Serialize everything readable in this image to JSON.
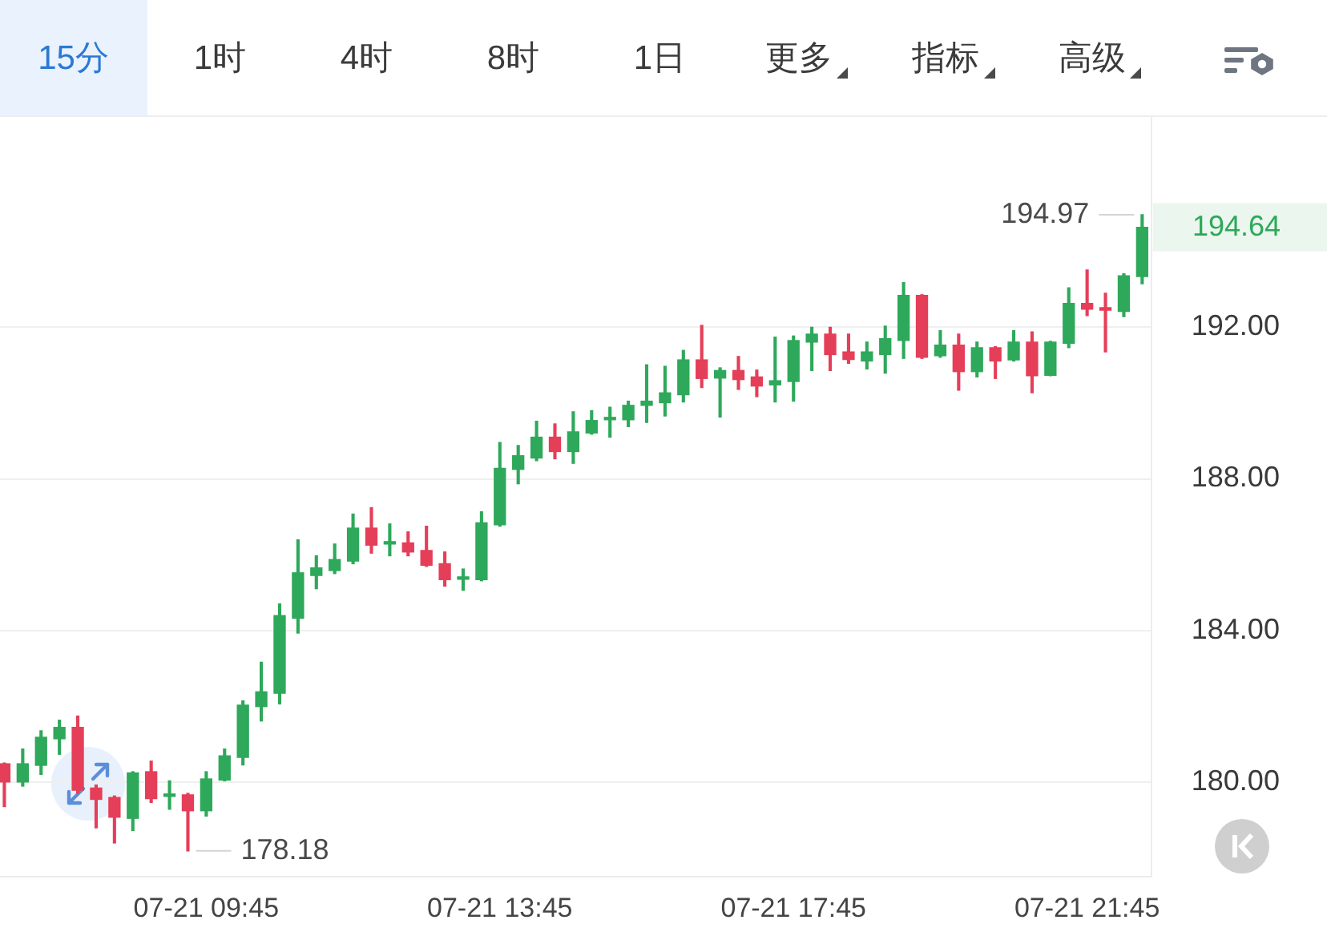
{
  "chart_data": {
    "type": "candlestick",
    "x": [
      "--07-21T07:00",
      "--07-21T07:15",
      "--07-21T07:30",
      "--07-21T07:45",
      "--07-21T08:00",
      "--07-21T08:15",
      "--07-21T08:30",
      "--07-21T08:45",
      "--07-21T09:00",
      "--07-21T09:15",
      "--07-21T09:30",
      "--07-21T09:45",
      "--07-21T10:00",
      "--07-21T10:15",
      "--07-21T10:30",
      "--07-21T10:45",
      "--07-21T11:00",
      "--07-21T11:15",
      "--07-21T11:30",
      "--07-21T11:45",
      "--07-21T12:00",
      "--07-21T12:15",
      "--07-21T12:30",
      "--07-21T12:45",
      "--07-21T13:00",
      "--07-21T13:15",
      "--07-21T13:30",
      "--07-21T13:45",
      "--07-21T14:00",
      "--07-21T14:15",
      "--07-21T14:30",
      "--07-21T14:45",
      "--07-21T15:00",
      "--07-21T15:15",
      "--07-21T15:30",
      "--07-21T15:45",
      "--07-21T16:00",
      "--07-21T16:15",
      "--07-21T16:30",
      "--07-21T16:45",
      "--07-21T17:00",
      "--07-21T17:15",
      "--07-21T17:30",
      "--07-21T17:45",
      "--07-21T18:00",
      "--07-21T18:15",
      "--07-21T18:30",
      "--07-21T18:45",
      "--07-21T19:00",
      "--07-21T19:15",
      "--07-21T19:30",
      "--07-21T19:45",
      "--07-21T20:00",
      "--07-21T20:15",
      "--07-21T20:30",
      "--07-21T20:45",
      "--07-21T21:00",
      "--07-21T21:15",
      "--07-21T21:30",
      "--07-21T21:45",
      "--07-21T22:00",
      "--07-21T22:15",
      "--07-21T22:30"
    ],
    "ohlc": [
      [
        180.48,
        180.5,
        179.35,
        180.0
      ],
      [
        180.0,
        180.87,
        179.89,
        180.48
      ],
      [
        180.44,
        181.35,
        180.2,
        181.18
      ],
      [
        181.14,
        181.63,
        180.73,
        181.44
      ],
      [
        181.44,
        181.74,
        179.7,
        179.78
      ],
      [
        179.84,
        179.92,
        178.79,
        179.54
      ],
      [
        179.59,
        179.63,
        178.39,
        179.07
      ],
      [
        179.04,
        180.27,
        178.72,
        180.24
      ],
      [
        180.27,
        180.55,
        179.46,
        179.56
      ],
      [
        179.62,
        180.03,
        179.28,
        179.65
      ],
      [
        179.66,
        179.7,
        178.18,
        179.24
      ],
      [
        179.24,
        180.27,
        179.1,
        180.08
      ],
      [
        180.05,
        180.87,
        180.03,
        180.69
      ],
      [
        180.65,
        182.14,
        180.45,
        182.03
      ],
      [
        181.99,
        183.16,
        181.61,
        182.38
      ],
      [
        182.34,
        184.7,
        182.06,
        184.39
      ],
      [
        184.32,
        186.39,
        183.93,
        185.52
      ],
      [
        185.45,
        185.97,
        185.1,
        185.65
      ],
      [
        185.58,
        186.28,
        185.5,
        185.87
      ],
      [
        185.83,
        187.07,
        185.76,
        186.7
      ],
      [
        186.7,
        187.24,
        186.04,
        186.25
      ],
      [
        186.28,
        186.81,
        185.97,
        186.3
      ],
      [
        186.31,
        186.6,
        185.97,
        186.07
      ],
      [
        186.11,
        186.75,
        185.69,
        185.72
      ],
      [
        185.76,
        186.07,
        185.17,
        185.34
      ],
      [
        185.35,
        185.62,
        185.06,
        185.37
      ],
      [
        185.34,
        187.13,
        185.31,
        186.84
      ],
      [
        186.79,
        188.96,
        186.75,
        188.28
      ],
      [
        188.25,
        188.88,
        187.87,
        188.61
      ],
      [
        188.55,
        189.52,
        188.48,
        189.1
      ],
      [
        189.1,
        189.45,
        188.53,
        188.72
      ],
      [
        188.72,
        189.77,
        188.41,
        189.24
      ],
      [
        189.21,
        189.8,
        189.18,
        189.54
      ],
      [
        189.56,
        189.89,
        189.1,
        189.58
      ],
      [
        189.56,
        190.05,
        189.38,
        189.94
      ],
      [
        189.94,
        191.01,
        189.49,
        190.05
      ],
      [
        190.01,
        190.97,
        189.66,
        190.27
      ],
      [
        190.22,
        191.39,
        190.03,
        191.14
      ],
      [
        191.14,
        192.05,
        190.41,
        190.65
      ],
      [
        190.66,
        190.93,
        189.63,
        190.86
      ],
      [
        190.86,
        191.23,
        190.36,
        190.62
      ],
      [
        190.69,
        190.87,
        190.17,
        190.45
      ],
      [
        190.48,
        191.74,
        190.03,
        190.59
      ],
      [
        190.57,
        191.77,
        190.05,
        191.65
      ],
      [
        191.61,
        192.0,
        190.86,
        191.82
      ],
      [
        191.82,
        192.0,
        190.86,
        191.28
      ],
      [
        191.35,
        191.82,
        191.05,
        191.15
      ],
      [
        191.11,
        191.61,
        190.9,
        191.35
      ],
      [
        191.28,
        192.03,
        190.79,
        191.7
      ],
      [
        191.65,
        193.18,
        191.18,
        192.84
      ],
      [
        192.84,
        192.86,
        191.18,
        191.21
      ],
      [
        191.25,
        191.91,
        191.21,
        191.53
      ],
      [
        191.53,
        191.82,
        190.34,
        190.83
      ],
      [
        190.83,
        191.61,
        190.69,
        191.46
      ],
      [
        191.46,
        191.49,
        190.65,
        191.11
      ],
      [
        191.14,
        191.91,
        191.11,
        191.61
      ],
      [
        191.61,
        191.88,
        190.27,
        190.72
      ],
      [
        190.73,
        191.63,
        190.72,
        191.61
      ],
      [
        191.58,
        193.04,
        191.46,
        192.63
      ],
      [
        192.63,
        193.51,
        192.31,
        192.48
      ],
      [
        192.52,
        192.9,
        191.35,
        192.45
      ],
      [
        192.42,
        193.41,
        192.28,
        193.36
      ],
      [
        193.34,
        194.97,
        193.15,
        194.64
      ]
    ],
    "colors": [
      "#e53e58",
      "#2ea85a",
      "#2ea85a",
      "#2ea85a",
      "#e53e58",
      "#e53e58",
      "#e53e58",
      "#2ea85a",
      "#e53e58",
      "#2ea85a",
      "#e53e58",
      "#2ea85a",
      "#2ea85a",
      "#2ea85a",
      "#2ea85a",
      "#2ea85a",
      "#2ea85a",
      "#2ea85a",
      "#2ea85a",
      "#2ea85a",
      "#e53e58",
      "#2ea85a",
      "#e53e58",
      "#e53e58",
      "#e53e58",
      "#2ea85a",
      "#2ea85a",
      "#2ea85a",
      "#2ea85a",
      "#2ea85a",
      "#e53e58",
      "#2ea85a",
      "#2ea85a",
      "#2ea85a",
      "#2ea85a",
      "#2ea85a",
      "#2ea85a",
      "#2ea85a",
      "#e53e58",
      "#2ea85a",
      "#e53e58",
      "#e53e58",
      "#2ea85a",
      "#2ea85a",
      "#2ea85a",
      "#e53e58",
      "#e53e58",
      "#2ea85a",
      "#2ea85a",
      "#2ea85a",
      "#e53e58",
      "#2ea85a",
      "#e53e58",
      "#2ea85a",
      "#e53e58",
      "#2ea85a",
      "#e53e58",
      "#2ea85a",
      "#2ea85a",
      "#e53e58",
      "#e53e58",
      "#2ea85a",
      "#2ea85a"
    ],
    "xlim": [
      "--07-21T06:52:30",
      "--07-21T22:37:30"
    ],
    "xticks": [
      {
        "value": "--07-21T09:45",
        "label": "07-21 09:45"
      },
      {
        "value": "--07-21T13:45",
        "label": "07-21 13:45"
      },
      {
        "value": "--07-21T17:45",
        "label": "07-21 17:45"
      },
      {
        "value": "--07-21T21:45",
        "label": "07-21 21:45"
      }
    ],
    "ylim": [
      177.5,
      197.55
    ],
    "yticks": [
      {
        "value": 180,
        "label": "180.00"
      },
      {
        "value": 184,
        "label": "184.00"
      },
      {
        "value": 188,
        "label": "188.00"
      },
      {
        "value": 192,
        "label": "192.00"
      }
    ],
    "grid": "y",
    "annotations": [
      "15分",
      "1时",
      "4时",
      "8时",
      "1日",
      "更多",
      "指标",
      "高级",
      {
        "text": "194.97",
        "x": "--07-21T22:30",
        "y": 194.97
      },
      {
        "text": "178.18",
        "x": "--07-21T09:30",
        "y": 178.18
      },
      "194.64"
    ]
  }
}
